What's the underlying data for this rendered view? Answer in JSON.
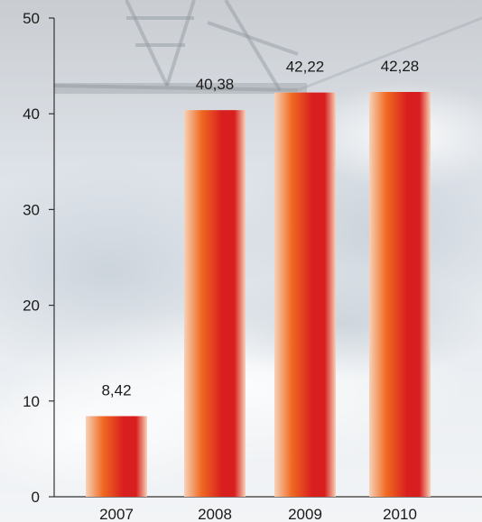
{
  "chart_data": {
    "type": "bar",
    "categories": [
      "2007",
      "2008",
      "2009",
      "2010"
    ],
    "values": [
      8.42,
      40.38,
      42.22,
      42.28
    ],
    "data_labels": [
      "8,42",
      "40,38",
      "42,22",
      "42,28"
    ],
    "ylim": [
      0,
      50
    ],
    "yticks": [
      0,
      10,
      20,
      30,
      40,
      50
    ],
    "ytick_labels": [
      "0",
      "10",
      "20",
      "30",
      "40",
      "50"
    ],
    "grid": false,
    "legend": "none",
    "colors": {
      "bar_edge": "#f6d2b8",
      "bar_mid": "#f06a22",
      "bar_core": "#d81e1e",
      "axis": "#333333"
    }
  }
}
